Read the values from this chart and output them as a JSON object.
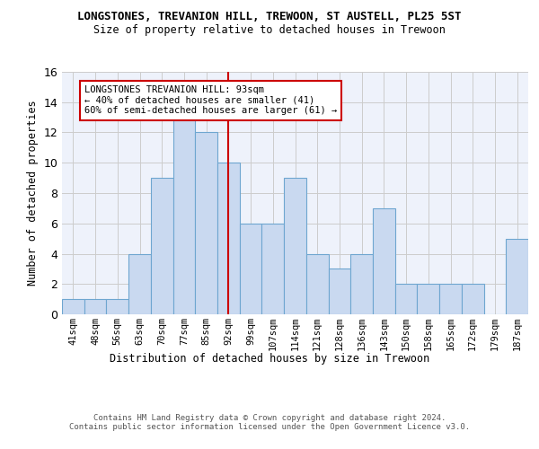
{
  "title": "LONGSTONES, TREVANION HILL, TREWOON, ST AUSTELL, PL25 5ST",
  "subtitle": "Size of property relative to detached houses in Trewoon",
  "xlabel": "Distribution of detached houses by size in Trewoon",
  "ylabel": "Number of detached properties",
  "categories": [
    "41sqm",
    "48sqm",
    "56sqm",
    "63sqm",
    "70sqm",
    "77sqm",
    "85sqm",
    "92sqm",
    "99sqm",
    "107sqm",
    "114sqm",
    "121sqm",
    "128sqm",
    "136sqm",
    "143sqm",
    "150sqm",
    "158sqm",
    "165sqm",
    "172sqm",
    "179sqm",
    "187sqm"
  ],
  "values": [
    1,
    1,
    1,
    4,
    9,
    13,
    12,
    10,
    6,
    6,
    9,
    4,
    3,
    4,
    7,
    2,
    2,
    2,
    2,
    0,
    5
  ],
  "bar_color": "#c9d9f0",
  "bar_edge_color": "#6ea6d0",
  "bar_edge_width": 0.8,
  "grid_color": "#cccccc",
  "vline_x_index": 7,
  "vline_color": "#cc0000",
  "annotation_text": "LONGSTONES TREVANION HILL: 93sqm\n← 40% of detached houses are smaller (41)\n60% of semi-detached houses are larger (61) →",
  "annotation_box_edge_color": "#cc0000",
  "ylim": [
    0,
    16
  ],
  "yticks": [
    0,
    2,
    4,
    6,
    8,
    10,
    12,
    14,
    16
  ],
  "footer_text": "Contains HM Land Registry data © Crown copyright and database right 2024.\nContains public sector information licensed under the Open Government Licence v3.0.",
  "bg_color": "#ffffff",
  "plot_bg_color": "#eef2fb"
}
